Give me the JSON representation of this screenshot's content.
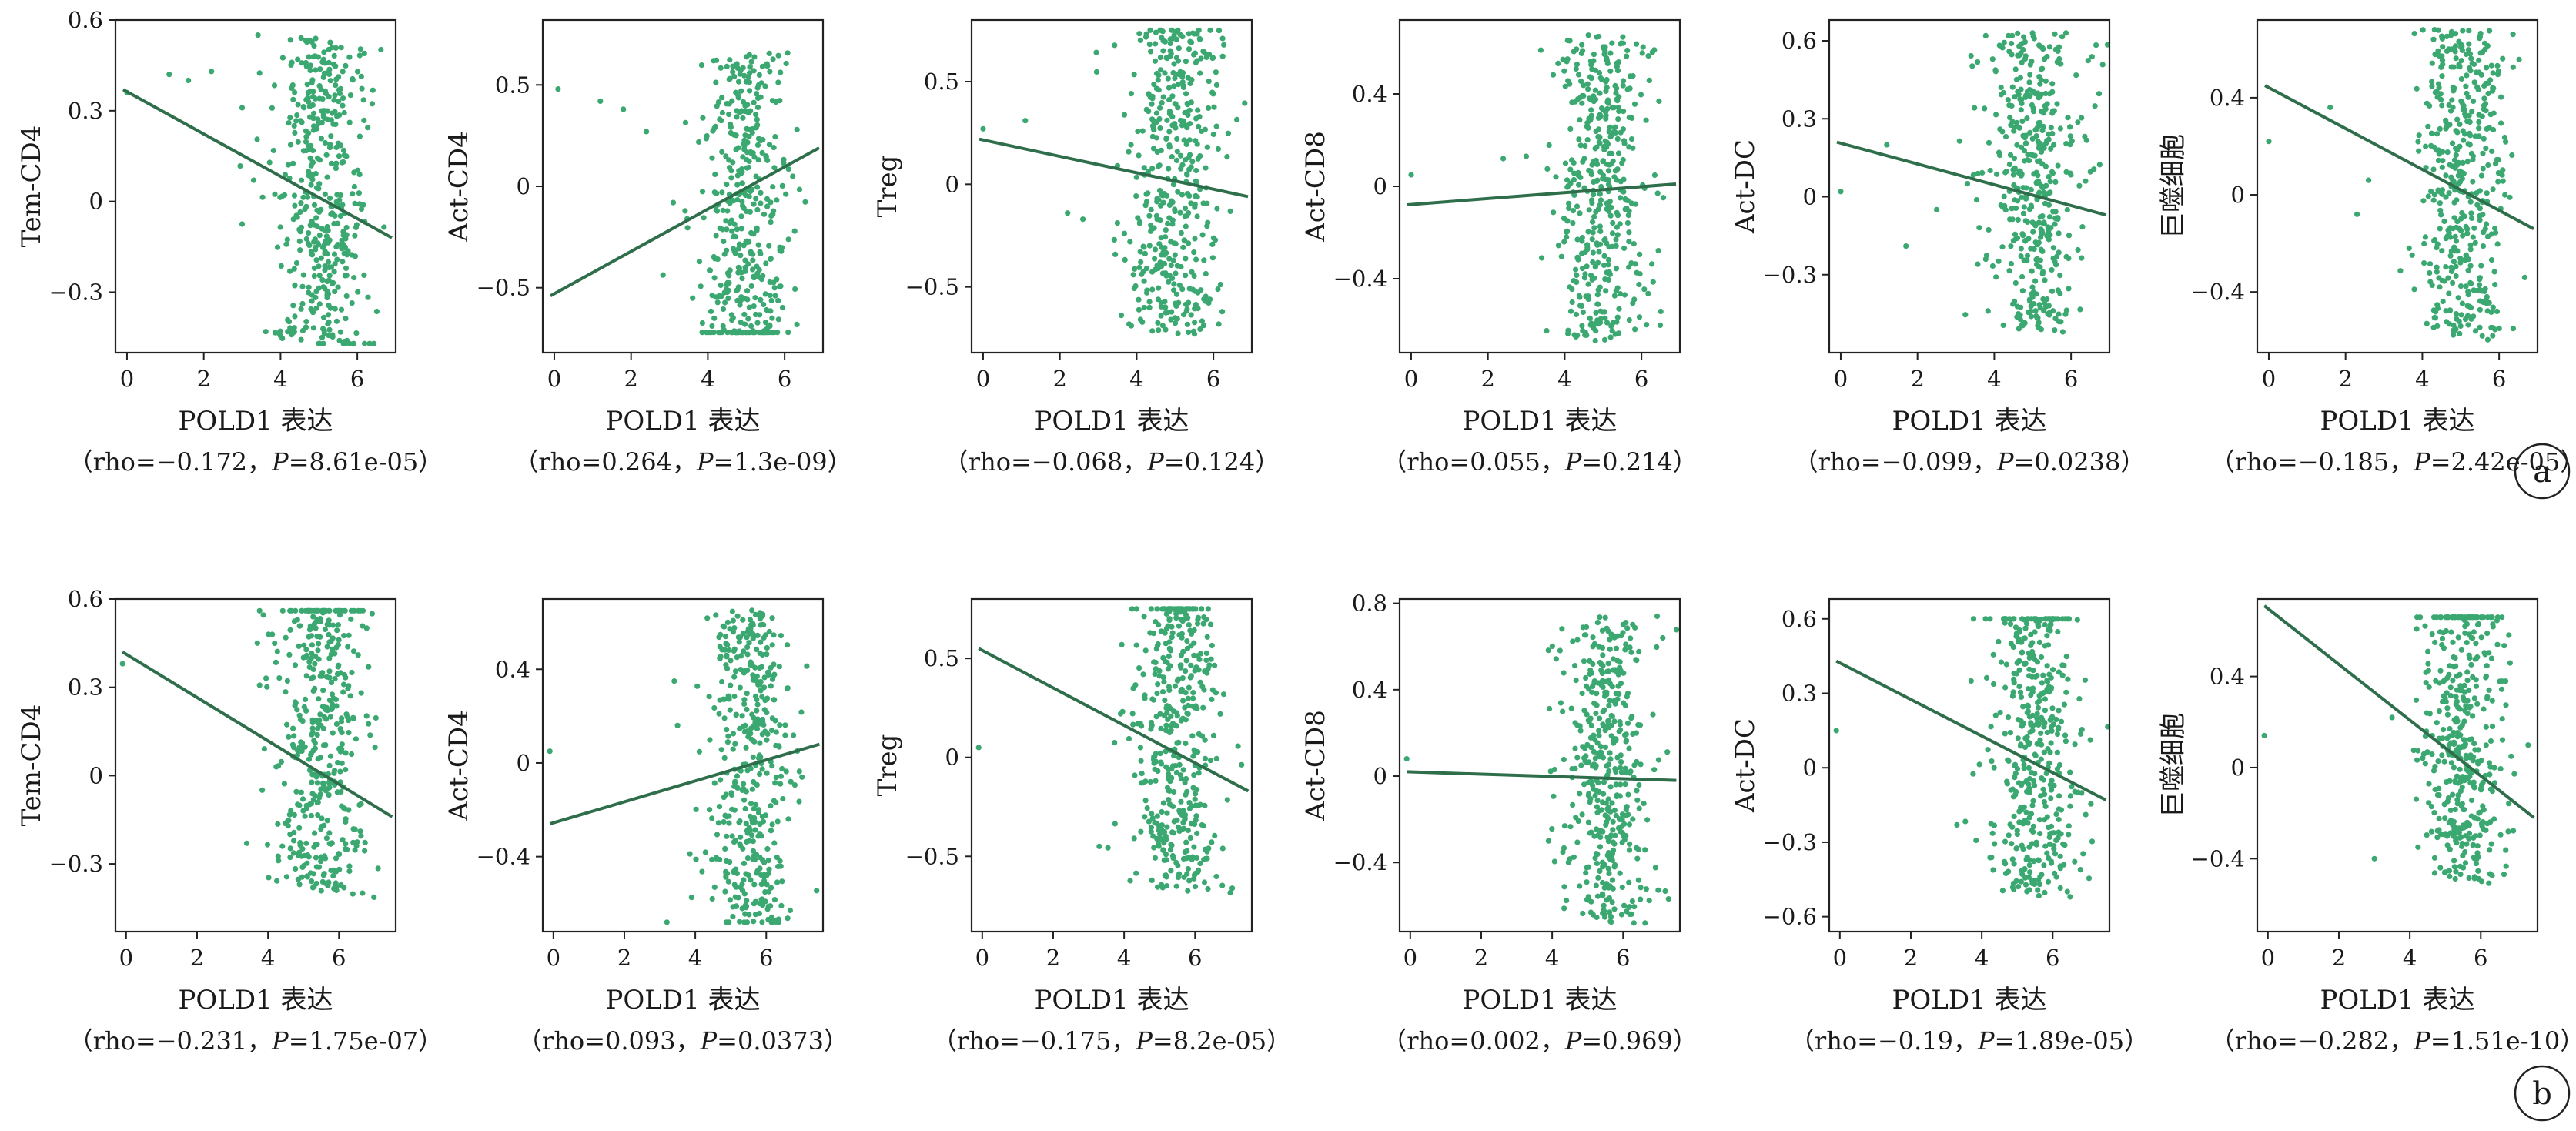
{
  "colors": {
    "point": "#3aa870",
    "line": "#2f6e4b",
    "axis": "#222222",
    "text": "#1a1a1a"
  },
  "panel_labels": [
    "a",
    "b"
  ],
  "chart_data": [
    {
      "type": "scatter",
      "row": 0,
      "col": 0,
      "title": "",
      "xlabel": "POLD1 表达",
      "ylabel": "Tem-CD4",
      "stat_prefix": "（rho=",
      "rho": "−0.172",
      "stat_mid": "，",
      "p_label": "P",
      "p_value": "=8.61e-05",
      "stat_suffix": "）",
      "xlim": [
        -0.3,
        7.0
      ],
      "ylim": [
        -0.5,
        0.6
      ],
      "xticks": [
        0,
        2,
        4,
        6
      ],
      "yticks": [
        -0.3,
        0,
        0.3,
        0.6
      ],
      "ytick_labels": [
        "−0.3",
        "0",
        "0.3",
        "0.6"
      ],
      "fit": {
        "x": [
          -0.1,
          6.9
        ],
        "y": [
          0.37,
          -0.12
        ]
      },
      "outliers": [
        [
          0.0,
          0.36
        ],
        [
          1.1,
          0.42
        ],
        [
          1.6,
          0.4
        ],
        [
          2.2,
          0.43
        ],
        [
          3.0,
          0.31
        ],
        [
          3.3,
          0.07
        ]
      ],
      "cluster": {
        "x_mean": 5.0,
        "x_sd": 0.62,
        "y_min": -0.47,
        "y_max": 0.55,
        "count": 430,
        "slope": -0.07,
        "intercept": 0.02
      }
    },
    {
      "type": "scatter",
      "row": 0,
      "col": 1,
      "title": "",
      "xlabel": "POLD1 表达",
      "ylabel": "Act-CD4",
      "stat_prefix": "（rho=",
      "rho": "0.264",
      "stat_mid": "，",
      "p_label": "P",
      "p_value": "=1.3e-09",
      "stat_suffix": "）",
      "xlim": [
        -0.3,
        7.0
      ],
      "ylim": [
        -0.82,
        0.82
      ],
      "xticks": [
        0,
        2,
        4,
        6
      ],
      "yticks": [
        -0.5,
        0,
        0.5
      ],
      "ytick_labels": [
        "−0.5",
        "0",
        "0.5"
      ],
      "fit": {
        "x": [
          -0.1,
          6.9
        ],
        "y": [
          -0.54,
          0.19
        ]
      },
      "outliers": [
        [
          0.1,
          0.48
        ],
        [
          1.2,
          0.42
        ],
        [
          1.8,
          0.38
        ],
        [
          2.4,
          0.27
        ],
        [
          3.1,
          -0.08
        ]
      ],
      "cluster": {
        "x_mean": 5.0,
        "x_sd": 0.6,
        "y_min": -0.72,
        "y_max": 0.78,
        "count": 430,
        "slope": 0.1,
        "intercept": -0.5
      }
    },
    {
      "type": "scatter",
      "row": 0,
      "col": 2,
      "title": "",
      "xlabel": "POLD1 表达",
      "ylabel": "Treg",
      "stat_prefix": "（rho=",
      "rho": "−0.068",
      "stat_mid": "，",
      "p_label": "P",
      "p_value": "=0.124",
      "stat_suffix": "）",
      "xlim": [
        -0.3,
        7.0
      ],
      "ylim": [
        -0.82,
        0.8
      ],
      "xticks": [
        0,
        2,
        4,
        6
      ],
      "yticks": [
        -0.5,
        0,
        0.5
      ],
      "ytick_labels": [
        "−0.5",
        "0",
        "0.5"
      ],
      "fit": {
        "x": [
          -0.1,
          6.9
        ],
        "y": [
          0.22,
          -0.06
        ]
      },
      "outliers": [
        [
          0.0,
          0.27
        ],
        [
          1.1,
          0.31
        ],
        [
          2.2,
          -0.14
        ],
        [
          2.6,
          -0.17
        ],
        [
          3.5,
          0.09
        ]
      ],
      "cluster": {
        "x_mean": 5.0,
        "x_sd": 0.6,
        "y_min": -0.77,
        "y_max": 0.75,
        "count": 430,
        "slope": -0.03,
        "intercept": 0.15
      }
    },
    {
      "type": "scatter",
      "row": 0,
      "col": 3,
      "title": "",
      "xlabel": "POLD1 表达",
      "ylabel": "Act-CD8",
      "stat_prefix": "（rho=",
      "rho": "0.055",
      "stat_mid": "，",
      "p_label": "P",
      "p_value": "=0.214",
      "stat_suffix": "）",
      "xlim": [
        -0.3,
        7.0
      ],
      "ylim": [
        -0.72,
        0.72
      ],
      "xticks": [
        0,
        2,
        4,
        6
      ],
      "yticks": [
        -0.4,
        0,
        0.4
      ],
      "ytick_labels": [
        "−0.4",
        "0",
        "0.4"
      ],
      "fit": {
        "x": [
          -0.1,
          6.9
        ],
        "y": [
          -0.08,
          0.01
        ]
      },
      "outliers": [
        [
          0.0,
          0.05
        ],
        [
          2.4,
          0.12
        ],
        [
          3.0,
          0.13
        ],
        [
          3.4,
          -0.31
        ]
      ],
      "cluster": {
        "x_mean": 5.0,
        "x_sd": 0.6,
        "y_min": -0.67,
        "y_max": 0.66,
        "count": 430,
        "slope": 0.0,
        "intercept": 0.0
      }
    },
    {
      "type": "scatter",
      "row": 0,
      "col": 4,
      "title": "",
      "xlabel": "POLD1 表达",
      "ylabel": "Act-DC",
      "stat_prefix": "（rho=",
      "rho": "−0.099",
      "stat_mid": "，",
      "p_label": "P",
      "p_value": "=0.0238",
      "stat_suffix": "）",
      "xlim": [
        -0.3,
        7.0
      ],
      "ylim": [
        -0.6,
        0.68
      ],
      "xticks": [
        0,
        2,
        4,
        6
      ],
      "yticks": [
        -0.3,
        0,
        0.3,
        0.6
      ],
      "ytick_labels": [
        "−0.3",
        "0",
        "0.3",
        "0.6"
      ],
      "fit": {
        "x": [
          -0.1,
          6.9
        ],
        "y": [
          0.21,
          -0.07
        ]
      },
      "outliers": [
        [
          0.0,
          0.02
        ],
        [
          1.2,
          0.2
        ],
        [
          1.7,
          -0.19
        ],
        [
          2.5,
          -0.05
        ],
        [
          3.3,
          0.05
        ]
      ],
      "cluster": {
        "x_mean": 5.0,
        "x_sd": 0.6,
        "y_min": -0.54,
        "y_max": 0.63,
        "count": 430,
        "slope": -0.04,
        "intercept": 0.15
      }
    },
    {
      "type": "scatter",
      "row": 0,
      "col": 5,
      "title": "",
      "xlabel": "POLD1 表达",
      "ylabel": "巨噬细胞",
      "stat_prefix": "（rho=",
      "rho": "−0.185",
      "stat_mid": "，",
      "p_label": "P",
      "p_value": "=2.42e-05",
      "stat_suffix": "）",
      "xlim": [
        -0.3,
        7.0
      ],
      "ylim": [
        -0.65,
        0.72
      ],
      "xticks": [
        0,
        2,
        4,
        6
      ],
      "yticks": [
        -0.4,
        0,
        0.4
      ],
      "ytick_labels": [
        "−0.4",
        "0",
        "0.4"
      ],
      "fit": {
        "x": [
          -0.1,
          6.9
        ],
        "y": [
          0.45,
          -0.14
        ]
      },
      "outliers": [
        [
          0.0,
          0.22
        ],
        [
          1.6,
          0.36
        ],
        [
          2.3,
          -0.08
        ],
        [
          2.6,
          0.06
        ]
      ],
      "cluster": {
        "x_mean": 5.0,
        "x_sd": 0.6,
        "y_min": -0.6,
        "y_max": 0.68,
        "count": 430,
        "slope": -0.08,
        "intercept": 0.1
      }
    },
    {
      "type": "scatter",
      "row": 1,
      "col": 0,
      "title": "",
      "xlabel": "POLD1 表达",
      "ylabel": "Tem-CD4",
      "stat_prefix": "（rho=",
      "rho": "−0.231",
      "stat_mid": "，",
      "p_label": "P",
      "p_value": "=1.75e-07",
      "stat_suffix": "）",
      "xlim": [
        -0.3,
        7.6
      ],
      "ylim": [
        -0.53,
        0.6
      ],
      "xticks": [
        0,
        2,
        4,
        6
      ],
      "yticks": [
        -0.3,
        0,
        0.3,
        0.6
      ],
      "ytick_labels": [
        "−0.3",
        "0",
        "0.3",
        "0.6"
      ],
      "fit": {
        "x": [
          -0.1,
          7.5
        ],
        "y": [
          0.42,
          -0.14
        ]
      },
      "outliers": [
        [
          -0.1,
          0.38
        ],
        [
          3.4,
          -0.23
        ],
        [
          3.7,
          0.45
        ]
      ],
      "cluster": {
        "x_mean": 5.5,
        "x_sd": 0.6,
        "y_min": -0.5,
        "y_max": 0.56,
        "count": 430,
        "slope": -0.08,
        "intercept": 0.45
      }
    },
    {
      "type": "scatter",
      "row": 1,
      "col": 1,
      "title": "",
      "xlabel": "POLD1 表达",
      "ylabel": "Act-CD4",
      "stat_prefix": "（rho=",
      "rho": "0.093",
      "stat_mid": "，",
      "p_label": "P",
      "p_value": "=0.0373",
      "stat_suffix": "）",
      "xlim": [
        -0.3,
        7.6
      ],
      "ylim": [
        -0.72,
        0.7
      ],
      "xticks": [
        0,
        2,
        4,
        6
      ],
      "yticks": [
        -0.4,
        0,
        0.4
      ],
      "ytick_labels": [
        "−0.4",
        "0",
        "0.4"
      ],
      "fit": {
        "x": [
          -0.1,
          7.5
        ],
        "y": [
          -0.26,
          0.08
        ]
      },
      "outliers": [
        [
          -0.1,
          0.05
        ],
        [
          3.2,
          -0.68
        ],
        [
          3.5,
          0.16
        ]
      ],
      "cluster": {
        "x_mean": 5.5,
        "x_sd": 0.6,
        "y_min": -0.68,
        "y_max": 0.68,
        "count": 430,
        "slope": 0.02,
        "intercept": -0.1
      }
    },
    {
      "type": "scatter",
      "row": 1,
      "col": 2,
      "title": "",
      "xlabel": "POLD1 表达",
      "ylabel": "Treg",
      "stat_prefix": "（rho=",
      "rho": "−0.175",
      "stat_mid": "，",
      "p_label": "P",
      "p_value": "=8.2e-05",
      "stat_suffix": "）",
      "xlim": [
        -0.3,
        7.6
      ],
      "ylim": [
        -0.88,
        0.8
      ],
      "xticks": [
        0,
        2,
        4,
        6
      ],
      "yticks": [
        -0.5,
        0,
        0.5
      ],
      "ytick_labels": [
        "−0.5",
        "0",
        "0.5"
      ],
      "fit": {
        "x": [
          -0.1,
          7.5
        ],
        "y": [
          0.55,
          -0.17
        ]
      },
      "outliers": [
        [
          -0.1,
          0.05
        ],
        [
          3.3,
          -0.45
        ],
        [
          3.9,
          0.22
        ]
      ],
      "cluster": {
        "x_mean": 5.5,
        "x_sd": 0.6,
        "y_min": -0.8,
        "y_max": 0.75,
        "count": 430,
        "slope": -0.09,
        "intercept": 0.5
      }
    },
    {
      "type": "scatter",
      "row": 1,
      "col": 3,
      "title": "",
      "xlabel": "POLD1 表达",
      "ylabel": "Act-CD8",
      "stat_prefix": "（rho=",
      "rho": "0.002",
      "stat_mid": "，",
      "p_label": "P",
      "p_value": "=0.969",
      "stat_suffix": "）",
      "xlim": [
        -0.3,
        7.6
      ],
      "ylim": [
        -0.72,
        0.82
      ],
      "xticks": [
        0,
        2,
        4,
        6
      ],
      "yticks": [
        -0.4,
        0,
        0.4,
        0.8
      ],
      "ytick_labels": [
        "−0.4",
        "0",
        "0.4",
        "0.8"
      ],
      "fit": {
        "x": [
          -0.1,
          7.5
        ],
        "y": [
          0.02,
          -0.02
        ]
      },
      "outliers": [
        [
          -0.1,
          0.08
        ],
        [
          3.9,
          -0.3
        ]
      ],
      "cluster": {
        "x_mean": 5.5,
        "x_sd": 0.6,
        "y_min": -0.68,
        "y_max": 0.75,
        "count": 430,
        "slope": 0.0,
        "intercept": 0.0
      }
    },
    {
      "type": "scatter",
      "row": 1,
      "col": 4,
      "title": "",
      "xlabel": "POLD1 表达",
      "ylabel": "Act-DC",
      "stat_prefix": "（rho=",
      "rho": "−0.19",
      "stat_mid": "，",
      "p_label": "P",
      "p_value": "=1.89e-05",
      "stat_suffix": "）",
      "xlim": [
        -0.3,
        7.6
      ],
      "ylim": [
        -0.66,
        0.68
      ],
      "xticks": [
        0,
        2,
        4,
        6
      ],
      "yticks": [
        -0.6,
        -0.3,
        0,
        0.3,
        0.6
      ],
      "ytick_labels": [
        "−0.6",
        "−0.3",
        "0",
        "0.3",
        "0.6"
      ],
      "fit": {
        "x": [
          -0.1,
          7.5
        ],
        "y": [
          0.43,
          -0.13
        ]
      },
      "outliers": [
        [
          -0.1,
          0.15
        ],
        [
          3.3,
          -0.23
        ],
        [
          3.7,
          0.35
        ]
      ],
      "cluster": {
        "x_mean": 5.5,
        "x_sd": 0.6,
        "y_min": -0.62,
        "y_max": 0.6,
        "count": 430,
        "slope": -0.07,
        "intercept": 0.4
      }
    },
    {
      "type": "scatter",
      "row": 1,
      "col": 5,
      "title": "",
      "xlabel": "POLD1 表达",
      "ylabel": "巨噬细胞",
      "stat_prefix": "（rho=",
      "rho": "−0.282",
      "stat_mid": "，",
      "p_label": "P",
      "p_value": "=1.51e-10",
      "stat_suffix": "）",
      "xlim": [
        -0.3,
        7.6
      ],
      "ylim": [
        -0.72,
        0.74
      ],
      "xticks": [
        0,
        2,
        4,
        6
      ],
      "yticks": [
        -0.4,
        0,
        0.4
      ],
      "ytick_labels": [
        "−0.4",
        "0",
        "0.4"
      ],
      "fit": {
        "x": [
          -0.1,
          7.5
        ],
        "y": [
          0.71,
          -0.22
        ]
      },
      "outliers": [
        [
          -0.1,
          0.14
        ],
        [
          3.0,
          -0.4
        ],
        [
          3.5,
          0.22
        ]
      ],
      "cluster": {
        "x_mean": 5.5,
        "x_sd": 0.6,
        "y_min": -0.66,
        "y_max": 0.66,
        "count": 430,
        "slope": -0.12,
        "intercept": 0.65
      }
    }
  ]
}
